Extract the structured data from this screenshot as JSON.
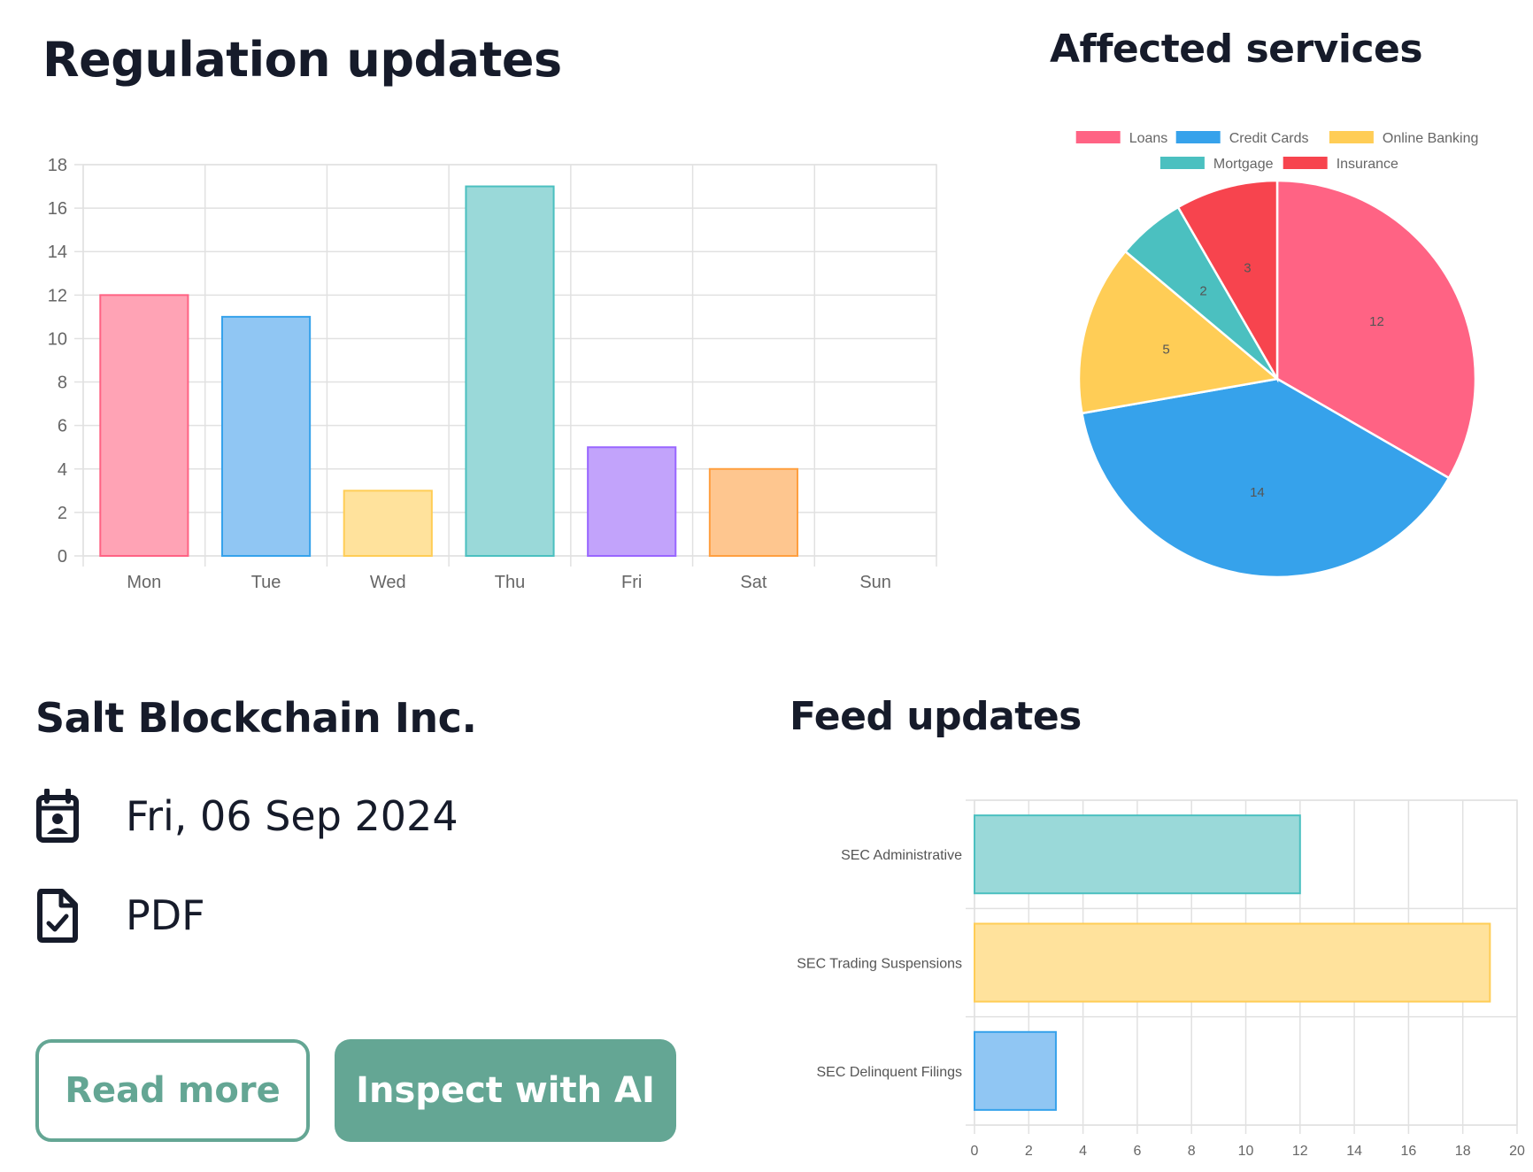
{
  "regulation": {
    "title": "Regulation updates",
    "chart_data": {
      "type": "bar",
      "categories": [
        "Mon",
        "Tue",
        "Wed",
        "Thu",
        "Fri",
        "Sat",
        "Sun"
      ],
      "values": [
        12,
        11,
        3,
        17,
        5,
        4,
        0
      ],
      "ylim": [
        0,
        18
      ],
      "yticks": [
        0,
        2,
        4,
        6,
        8,
        10,
        12,
        14,
        16,
        18
      ],
      "grid": true,
      "colors": [
        {
          "fill": "#ffa3b5",
          "stroke": "#ff6384"
        },
        {
          "fill": "#90c6f3",
          "stroke": "#36a2eb"
        },
        {
          "fill": "#ffe29c",
          "stroke": "#ffcd56"
        },
        {
          "fill": "#9ad9d9",
          "stroke": "#4bc0c0"
        },
        {
          "fill": "#c2a3fb",
          "stroke": "#9966ff"
        },
        {
          "fill": "#fec68f",
          "stroke": "#ff9f40"
        },
        {
          "fill": "#e4e5e7",
          "stroke": "#c9cbcf"
        }
      ]
    }
  },
  "affected": {
    "title": "Affected services",
    "chart_data": {
      "type": "pie",
      "labels": [
        "Loans",
        "Credit Cards",
        "Online Banking",
        "Mortgage",
        "Insurance"
      ],
      "values": [
        12,
        14,
        5,
        2,
        3
      ],
      "colors": [
        "#ff6384",
        "#36a2eb",
        "#ffcd56",
        "#4bc0c0",
        "#f7444e"
      ],
      "legend": "top"
    }
  },
  "company": {
    "name": "Salt Blockchain Inc.",
    "date": "Fri, 06 Sep 2024",
    "doc_type": "PDF",
    "read_more": "Read more",
    "inspect_ai": "Inspect with AI"
  },
  "feed": {
    "title": "Feed updates",
    "chart_data": {
      "type": "bar",
      "orientation": "horizontal",
      "categories": [
        "SEC Administrative",
        "SEC Trading Suspensions",
        "SEC Delinquent Filings"
      ],
      "values": [
        12,
        19,
        3
      ],
      "xlim": [
        0,
        20
      ],
      "xticks": [
        0,
        2,
        4,
        6,
        8,
        10,
        12,
        14,
        16,
        18,
        20
      ],
      "grid": true,
      "colors": [
        {
          "fill": "#9ad9d9",
          "stroke": "#4bc0c0"
        },
        {
          "fill": "#ffe29c",
          "stroke": "#ffcd56"
        },
        {
          "fill": "#90c6f3",
          "stroke": "#36a2eb"
        }
      ]
    }
  }
}
